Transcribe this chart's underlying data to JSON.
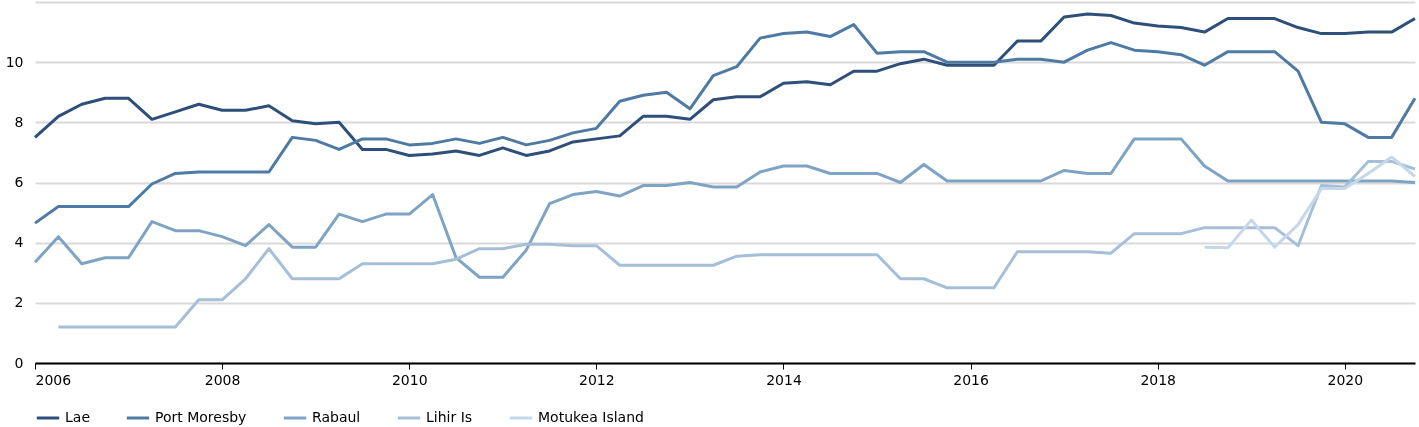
{
  "chart_data": {
    "type": "line",
    "x": [
      2006,
      2006.25,
      2006.5,
      2006.75,
      2007,
      2007.25,
      2007.5,
      2007.75,
      2008,
      2008.25,
      2008.5,
      2008.75,
      2009,
      2009.25,
      2009.5,
      2009.75,
      2010,
      2010.25,
      2010.5,
      2010.75,
      2011,
      2011.25,
      2011.5,
      2011.75,
      2012,
      2012.25,
      2012.5,
      2012.75,
      2013,
      2013.25,
      2013.5,
      2013.75,
      2014,
      2014.25,
      2014.5,
      2014.75,
      2015,
      2015.25,
      2015.5,
      2015.75,
      2016,
      2016.25,
      2016.5,
      2016.75,
      2017,
      2017.25,
      2017.5,
      2017.75,
      2018,
      2018.25,
      2018.5,
      2018.75,
      2019,
      2019.25,
      2019.5,
      2019.75,
      2020,
      2020.25,
      2020.5,
      2020.75
    ],
    "series": [
      {
        "name": "Lae",
        "color": "#2e4f7a",
        "values": [
          7.5,
          8.2,
          8.6,
          8.8,
          8.8,
          8.1,
          8.35,
          8.6,
          8.4,
          8.4,
          8.55,
          8.05,
          7.95,
          8.0,
          7.1,
          7.1,
          6.9,
          6.95,
          7.05,
          6.9,
          7.15,
          6.9,
          7.05,
          7.35,
          7.45,
          7.55,
          8.2,
          8.2,
          8.1,
          8.75,
          8.85,
          8.85,
          9.3,
          9.35,
          9.25,
          9.7,
          9.7,
          9.95,
          10.1,
          9.9,
          9.9,
          9.9,
          10.7,
          10.7,
          11.5,
          11.6,
          11.55,
          11.3,
          11.2,
          11.15,
          11.0,
          11.45,
          11.45,
          11.45,
          11.15,
          10.95,
          10.95,
          11.0,
          11.0,
          11.45
        ]
      },
      {
        "name": "Port Moresby",
        "color": "#4e7aa3",
        "values": [
          4.65,
          5.2,
          5.2,
          5.2,
          5.2,
          5.95,
          6.3,
          6.35,
          6.35,
          6.35,
          6.35,
          7.5,
          7.4,
          7.1,
          7.45,
          7.45,
          7.25,
          7.3,
          7.45,
          7.3,
          7.5,
          7.25,
          7.4,
          7.65,
          7.8,
          8.7,
          8.9,
          9.0,
          8.45,
          9.55,
          9.85,
          10.8,
          10.95,
          11.0,
          10.85,
          11.25,
          10.3,
          10.35,
          10.35,
          10.0,
          10.0,
          10.0,
          10.1,
          10.1,
          10.0,
          10.4,
          10.65,
          10.4,
          10.35,
          10.25,
          9.9,
          10.35,
          10.35,
          10.35,
          9.7,
          8.0,
          7.95,
          7.5,
          7.5,
          8.8
        ]
      },
      {
        "name": "Rabaul",
        "color": "#7fa3c4",
        "values": [
          3.35,
          4.2,
          3.3,
          3.5,
          3.5,
          4.7,
          4.4,
          4.4,
          4.2,
          3.9,
          4.6,
          3.85,
          3.85,
          4.95,
          4.7,
          4.95,
          4.95,
          5.6,
          3.5,
          2.85,
          2.85,
          3.75,
          5.3,
          5.6,
          5.7,
          5.55,
          5.9,
          5.9,
          6.0,
          5.85,
          5.85,
          6.35,
          6.55,
          6.55,
          6.3,
          6.3,
          6.3,
          6.0,
          6.6,
          6.05,
          6.05,
          6.05,
          6.05,
          6.05,
          6.4,
          6.3,
          6.3,
          7.45,
          7.45,
          7.45,
          6.55,
          6.05,
          6.05,
          6.05,
          6.05,
          6.05,
          6.05,
          6.05,
          6.05,
          6.0
        ]
      },
      {
        "name": "Lihir Is",
        "color": "#a6bfd8",
        "values": [
          null,
          1.2,
          1.2,
          1.2,
          1.2,
          1.2,
          1.2,
          2.1,
          2.1,
          2.8,
          3.8,
          2.8,
          2.8,
          2.8,
          3.3,
          3.3,
          3.3,
          3.3,
          3.45,
          3.8,
          3.8,
          3.95,
          3.95,
          3.9,
          3.9,
          3.25,
          3.25,
          3.25,
          3.25,
          3.25,
          3.55,
          3.6,
          3.6,
          3.6,
          3.6,
          3.6,
          3.6,
          2.8,
          2.8,
          2.5,
          2.5,
          2.5,
          3.7,
          3.7,
          3.7,
          3.7,
          3.65,
          4.3,
          4.3,
          4.3,
          4.5,
          4.5,
          4.5,
          4.5,
          3.9,
          5.9,
          5.85,
          6.7,
          6.7,
          6.45
        ]
      },
      {
        "name": "Motukea Island",
        "color": "#c5d8ea",
        "values": [
          null,
          null,
          null,
          null,
          null,
          null,
          null,
          null,
          null,
          null,
          null,
          null,
          null,
          null,
          null,
          null,
          null,
          null,
          null,
          null,
          null,
          null,
          null,
          null,
          null,
          null,
          null,
          null,
          null,
          null,
          null,
          null,
          null,
          null,
          null,
          null,
          null,
          null,
          null,
          null,
          null,
          null,
          null,
          null,
          null,
          null,
          null,
          null,
          null,
          null,
          3.85,
          3.83,
          4.75,
          3.85,
          4.6,
          5.8,
          5.8,
          6.3,
          6.85,
          6.2
        ]
      }
    ],
    "xlim": [
      2006,
      2020.75
    ],
    "xticks": [
      2006,
      2008,
      2010,
      2012,
      2014,
      2016,
      2018,
      2020
    ],
    "ylim": [
      0,
      12
    ],
    "yticks": [
      0,
      2,
      4,
      6,
      8,
      10,
      {
        "value": 12,
        "label": null
      }
    ],
    "grid": "y",
    "legend": "bottom",
    "marker": "none",
    "line_style": "solid"
  }
}
